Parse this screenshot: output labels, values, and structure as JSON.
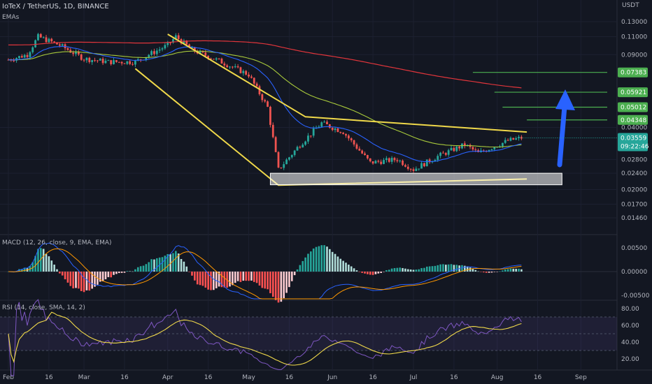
{
  "header": {
    "title": "IoTeX / TetherUS, 1D, BINANCE",
    "indicator": "EMAs",
    "currency": "USDT"
  },
  "price_axis": {
    "ticks": [
      "0.13000",
      "0.11000",
      "0.09000",
      "0.07383",
      "0.05921",
      "0.05012",
      "0.04348",
      "0.04000",
      "0.03559",
      "0.02800",
      "0.02400",
      "0.02000",
      "0.01700",
      "0.01460"
    ],
    "last_price": "0.03559",
    "countdown": "09:22:46"
  },
  "macd": {
    "label": "MACD (12, 26, close, 9, EMA, EMA)",
    "ticks": [
      "0.00500",
      "0.00000",
      "-0.00500"
    ]
  },
  "rsi": {
    "label": "RSI (14, close, SMA, 14, 2)",
    "ticks": [
      "80.00",
      "60.00",
      "40.00",
      "20.00"
    ]
  },
  "time_axis": [
    "Feb",
    "16",
    "Mar",
    "16",
    "Apr",
    "16",
    "May",
    "16",
    "Jun",
    "16",
    "Jul",
    "16",
    "Aug",
    "16",
    "Sep"
  ],
  "colors": {
    "bg": "#131722",
    "up": "#26a69a",
    "down": "#ef5350",
    "pattern": "#f0d94a",
    "target": "#4caf50",
    "arrow": "#2962ff",
    "ema20": "#2962ff",
    "ema50": "#a8c93b",
    "ema200": "#e0353b",
    "rsi": "#7e57c2",
    "rsi_ma": "#f0d94a"
  },
  "chart_data": {
    "type": "candlestick",
    "symbol": "IOTXUSDT",
    "timeframe": "1D",
    "x_range": [
      "Feb 1",
      "Sep 3"
    ],
    "y_scale": "log",
    "close_path": [
      [
        "Feb 1",
        0.085
      ],
      [
        "Feb 8",
        0.09
      ],
      [
        "Feb 12",
        0.11
      ],
      [
        "Feb 20",
        0.1
      ],
      [
        "Mar 1",
        0.086
      ],
      [
        "Mar 10",
        0.083
      ],
      [
        "Mar 20",
        0.083
      ],
      [
        "Mar 25",
        0.09
      ],
      [
        "Apr 1",
        0.1
      ],
      [
        "Apr 4",
        0.11
      ],
      [
        "Apr 10",
        0.095
      ],
      [
        "Apr 20",
        0.084
      ],
      [
        "May 1",
        0.072
      ],
      [
        "May 8",
        0.05
      ],
      [
        "May 12",
        0.025
      ],
      [
        "May 20",
        0.033
      ],
      [
        "May 28",
        0.042
      ],
      [
        "Jun 5",
        0.038
      ],
      [
        "Jun 15",
        0.027
      ],
      [
        "Jun 25",
        0.028
      ],
      [
        "Jul 1",
        0.025
      ],
      [
        "Jul 10",
        0.029
      ],
      [
        "Jul 20",
        0.033
      ],
      [
        "Jul 25",
        0.03
      ],
      [
        "Aug 5",
        0.0345
      ],
      [
        "Aug 10",
        0.0356
      ]
    ],
    "pattern": {
      "upper_line": [
        [
          "Apr 1",
          0.113
        ],
        [
          "May 22",
          0.045
        ],
        [
          "Aug 12",
          0.038
        ]
      ],
      "lower_line": [
        [
          "Mar 20",
          0.077
        ],
        [
          "May 12",
          0.021
        ],
        [
          "Aug 12",
          0.0225
        ]
      ],
      "support_zone": [
        0.0211,
        0.024
      ]
    },
    "targets": [
      0.07383,
      0.05921,
      0.05012,
      0.04348
    ],
    "last_price": 0.03559
  }
}
